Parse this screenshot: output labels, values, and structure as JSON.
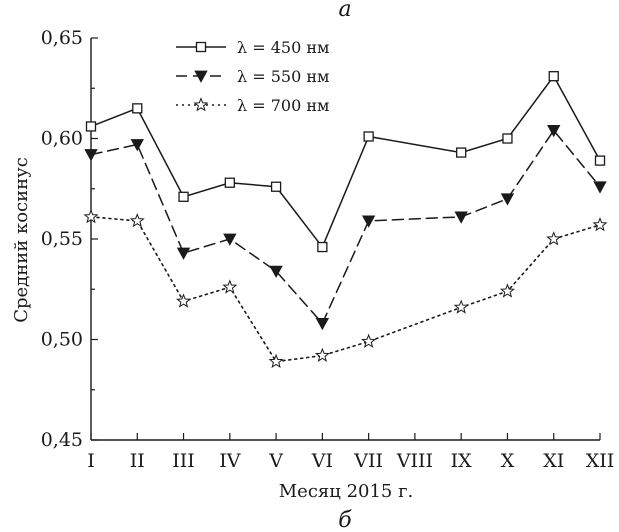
{
  "panel_label_top": "а",
  "panel_label_bottom": "б",
  "chart_data": {
    "type": "line",
    "xlabel": "Месяц 2015 г.",
    "ylabel": "Средний косинус",
    "categories": [
      "I",
      "II",
      "III",
      "IV",
      "V",
      "VI",
      "VII",
      "VIII",
      "IX",
      "X",
      "XI",
      "XII"
    ],
    "ylim": [
      0.45,
      0.65
    ],
    "yticks": [
      0.45,
      0.5,
      0.55,
      0.6,
      0.65
    ],
    "ytick_labels": [
      "0,45",
      "0,50",
      "0,55",
      "0,60",
      "0,65"
    ],
    "grid": false,
    "legend_position": "top-left",
    "series": [
      {
        "name": "λ = 450 нм",
        "line_style": "solid",
        "marker": "open-square",
        "values": [
          0.606,
          0.615,
          0.571,
          0.578,
          0.576,
          0.546,
          0.601,
          null,
          0.593,
          0.6,
          0.631,
          0.589
        ]
      },
      {
        "name": "λ = 550 нм",
        "line_style": "dashed",
        "marker": "filled-triangle-down",
        "values": [
          0.592,
          0.597,
          0.543,
          0.55,
          0.534,
          0.508,
          0.559,
          null,
          0.561,
          0.57,
          0.604,
          0.576
        ]
      },
      {
        "name": "λ = 700 нм",
        "line_style": "dotted",
        "marker": "open-star",
        "values": [
          0.561,
          0.559,
          0.519,
          0.526,
          0.489,
          0.492,
          0.499,
          null,
          0.516,
          0.524,
          0.55,
          0.557
        ]
      }
    ]
  }
}
